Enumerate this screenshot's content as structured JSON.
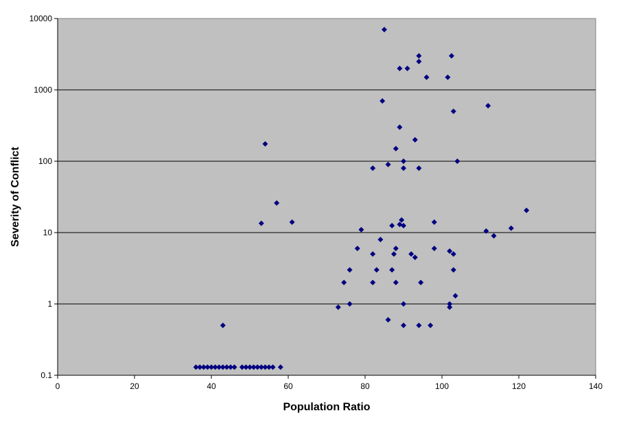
{
  "chart_data": {
    "type": "scatter",
    "title": "",
    "xlabel": "Population Ratio",
    "ylabel": "Severity of Conflict",
    "xlim": [
      0,
      140
    ],
    "ylim": [
      0.1,
      10000
    ],
    "yscale": "log",
    "x_ticks": [
      "0",
      "20",
      "40",
      "60",
      "80",
      "100",
      "120",
      "140"
    ],
    "y_ticks": [
      "0.1",
      "1",
      "10",
      "100",
      "1000",
      "10000"
    ],
    "grid": "horizontal",
    "plot_background": "#c0c0c0",
    "marker_color": "#000080",
    "marker": "diamond",
    "points": [
      [
        36,
        0.13
      ],
      [
        37,
        0.13
      ],
      [
        38,
        0.13
      ],
      [
        39,
        0.13
      ],
      [
        40,
        0.13
      ],
      [
        41,
        0.13
      ],
      [
        42,
        0.13
      ],
      [
        43,
        0.13
      ],
      [
        44,
        0.13
      ],
      [
        45,
        0.13
      ],
      [
        46,
        0.13
      ],
      [
        48,
        0.13
      ],
      [
        49,
        0.13
      ],
      [
        50,
        0.13
      ],
      [
        51,
        0.13
      ],
      [
        52,
        0.13
      ],
      [
        53,
        0.13
      ],
      [
        54,
        0.13
      ],
      [
        55,
        0.13
      ],
      [
        56,
        0.13
      ],
      [
        58,
        0.13
      ],
      [
        43,
        0.5
      ],
      [
        54,
        175
      ],
      [
        53,
        13.5
      ],
      [
        57,
        26
      ],
      [
        61,
        14
      ],
      [
        73,
        0.9
      ],
      [
        74.5,
        2
      ],
      [
        76,
        1
      ],
      [
        76,
        3
      ],
      [
        78,
        6
      ],
      [
        79,
        11
      ],
      [
        82,
        80
      ],
      [
        82,
        5
      ],
      [
        82,
        2
      ],
      [
        83,
        3
      ],
      [
        84,
        8
      ],
      [
        84.5,
        700
      ],
      [
        85,
        7000
      ],
      [
        86,
        90
      ],
      [
        86,
        0.6
      ],
      [
        87,
        12.5
      ],
      [
        87,
        3
      ],
      [
        87.5,
        5
      ],
      [
        88,
        150
      ],
      [
        88,
        6
      ],
      [
        88,
        2
      ],
      [
        89,
        2000
      ],
      [
        89,
        300
      ],
      [
        89,
        13
      ],
      [
        89.5,
        15
      ],
      [
        90,
        100
      ],
      [
        90,
        80
      ],
      [
        90,
        12.5
      ],
      [
        90,
        1
      ],
      [
        90,
        0.5
      ],
      [
        91,
        2000
      ],
      [
        92,
        5
      ],
      [
        93,
        200
      ],
      [
        93,
        4.5
      ],
      [
        94,
        3000
      ],
      [
        94,
        2500
      ],
      [
        94,
        80
      ],
      [
        94,
        0.5
      ],
      [
        94.5,
        2
      ],
      [
        96,
        1500
      ],
      [
        97,
        0.5
      ],
      [
        98,
        14
      ],
      [
        98,
        6
      ],
      [
        101.5,
        1500
      ],
      [
        102,
        5.5
      ],
      [
        102,
        1
      ],
      [
        102,
        0.9
      ],
      [
        102.5,
        3000
      ],
      [
        103,
        500
      ],
      [
        103,
        5
      ],
      [
        103,
        3
      ],
      [
        103.5,
        1.3
      ],
      [
        104,
        100
      ],
      [
        111.5,
        10.5
      ],
      [
        112,
        600
      ],
      [
        113.5,
        9
      ],
      [
        118,
        11.5
      ],
      [
        122,
        20.5
      ]
    ]
  }
}
